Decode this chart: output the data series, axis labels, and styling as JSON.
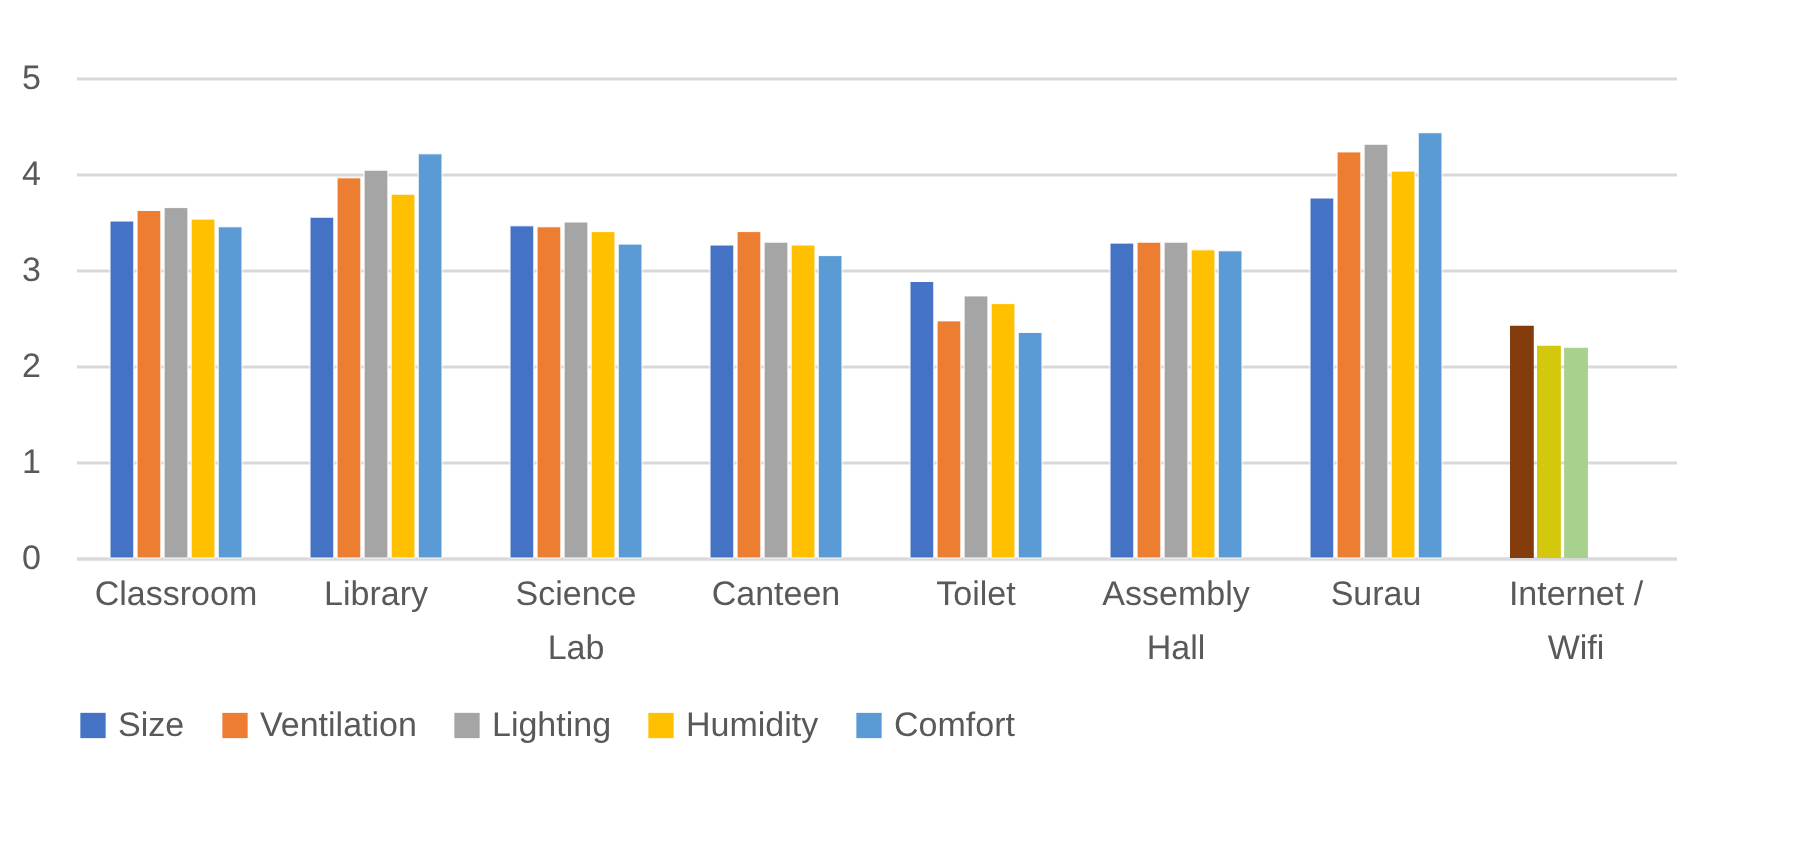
{
  "chart_data": {
    "type": "bar",
    "categories": [
      "Classroom",
      "Library",
      "Science Lab",
      "Canteen",
      "Toilet",
      "Assembly Hall",
      "Surau",
      "Internet / Wifi"
    ],
    "series": [
      {
        "name": "Size",
        "color": "#4472c4",
        "colors": [
          "#4472c4",
          "#4472c4",
          "#4472c4",
          "#4472c4",
          "#4472c4",
          "#4472c4",
          "#4472c4",
          "#843c0c"
        ],
        "values": [
          3.51,
          3.55,
          3.46,
          3.26,
          2.88,
          3.28,
          3.75,
          2.42
        ]
      },
      {
        "name": "Ventilation",
        "color": "#ed7d31",
        "colors": [
          "#ed7d31",
          "#ed7d31",
          "#ed7d31",
          "#ed7d31",
          "#ed7d31",
          "#ed7d31",
          "#ed7d31",
          "#d4c80c"
        ],
        "values": [
          3.62,
          3.96,
          3.45,
          3.4,
          2.47,
          3.29,
          4.23,
          2.21
        ]
      },
      {
        "name": "Lighting",
        "color": "#a5a5a5",
        "colors": [
          "#a5a5a5",
          "#a5a5a5",
          "#a5a5a5",
          "#a5a5a5",
          "#a5a5a5",
          "#a5a5a5",
          "#a5a5a5",
          "#a9d18e"
        ],
        "values": [
          3.65,
          4.04,
          3.5,
          3.29,
          2.73,
          3.29,
          4.31,
          2.19
        ]
      },
      {
        "name": "Humidity",
        "color": "#ffc000",
        "values": [
          3.53,
          3.79,
          3.4,
          3.26,
          2.65,
          3.21,
          4.03,
          null
        ]
      },
      {
        "name": "Comfort",
        "color": "#5b9bd5",
        "values": [
          3.45,
          4.21,
          3.27,
          3.15,
          2.35,
          3.2,
          4.43,
          null
        ]
      }
    ],
    "ylim": [
      0,
      5
    ],
    "yticks": [
      0,
      1,
      2,
      3,
      4,
      5
    ],
    "grid": "y",
    "legend": "bottom"
  }
}
